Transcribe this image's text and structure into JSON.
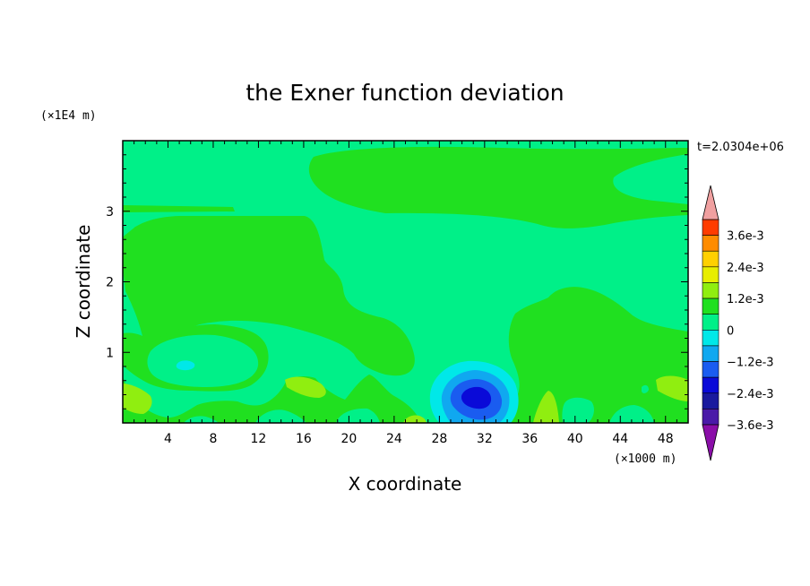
{
  "chart_data": {
    "type": "heatmap",
    "title": "the Exner function deviation",
    "xlabel": "X coordinate",
    "ylabel": "Z coordinate",
    "x_scale_label": "(×1000 m)",
    "y_scale_label": "(×1E4 m)",
    "time_label": "t=2.0304e+06",
    "xlim": [
      0,
      50
    ],
    "ylim": [
      0,
      4
    ],
    "x_ticks": [
      4,
      8,
      12,
      16,
      20,
      24,
      28,
      32,
      36,
      40,
      44,
      48
    ],
    "y_ticks": [
      1,
      2,
      3
    ],
    "colorbar": {
      "levels": [
        -0.0036,
        -0.003,
        -0.0024,
        -0.0018,
        -0.0012,
        -0.0006,
        0,
        0.0006,
        0.0012,
        0.0018,
        0.0024,
        0.003,
        0.0036
      ],
      "labels": [
        "3.6e-3",
        "2.4e-3",
        "1.2e-3",
        "0",
        "−1.2e-3",
        "−2.4e-3",
        "−3.6e-3"
      ],
      "label_values": [
        0.0036,
        0.0024,
        0.0012,
        0,
        -0.0012,
        -0.0024,
        -0.0036
      ],
      "colors": [
        "#8a0ea8",
        "#4a1aa8",
        "#1a1a9e",
        "#0a0ad8",
        "#1a5cf0",
        "#10a8f0",
        "#00e8e8",
        "#00f088",
        "#20e020",
        "#90ee10",
        "#e8ee00",
        "#ffd000",
        "#ff8c00",
        "#ff3c00",
        "#f0a0a0"
      ]
    },
    "fill_colors": {
      "background": "#00f088",
      "positive_low": "#20e020",
      "positive_mid": "#90ee10",
      "negative_low": "#00e8e8",
      "negative_mid": "#10a8f0",
      "negative_high": "#1a5cf0",
      "negative_peak": "#0a0ad8"
    }
  }
}
